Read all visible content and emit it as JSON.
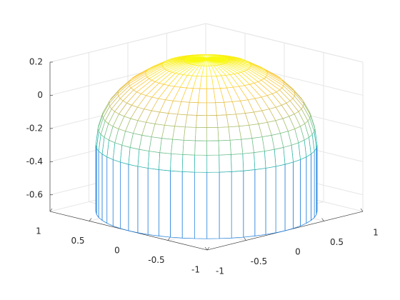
{
  "chart_data": {
    "type": "mesh3d",
    "x": [
      0,
      0.2,
      0.4,
      0.55,
      0.7,
      0.8,
      0.88,
      0.94,
      0.98,
      1,
      1
    ],
    "values": [
      0.22,
      0.21,
      0.18,
      0.13,
      0.07,
      0.01,
      -0.05,
      -0.12,
      -0.2,
      -0.3,
      -0.7
    ],
    "xlim": [
      -1,
      1
    ],
    "xticks": [
      -1,
      -0.5,
      0,
      0.5,
      1
    ],
    "ylim": [
      -1,
      1
    ],
    "yticks": [
      -1,
      -0.5,
      0,
      0.5,
      1
    ],
    "zlim": [
      -0.7,
      0.2
    ],
    "zticks": [
      -0.6,
      -0.4,
      -0.2,
      0,
      0.2
    ],
    "grid": true,
    "colormap": [
      "#352a87",
      "#0f5cdd",
      "#1481d6",
      "#06a4ca",
      "#2eb7a4",
      "#87bf77",
      "#d1bb59",
      "#fec832",
      "#f9fb0e"
    ]
  }
}
